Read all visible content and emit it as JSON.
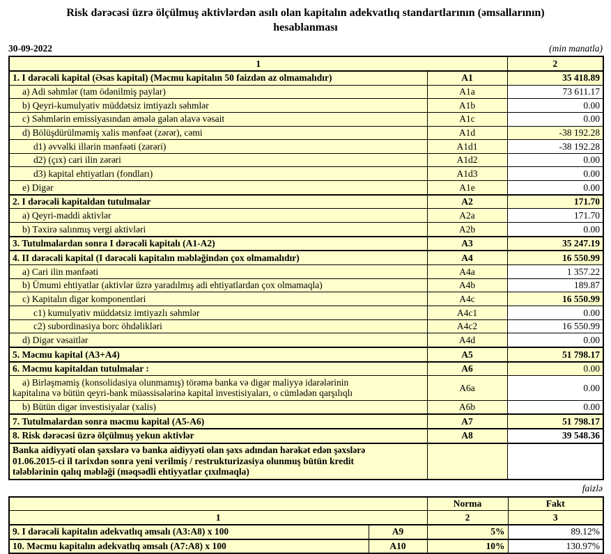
{
  "title": {
    "line1": "Risk dərəcəsi üzrə ölçülmuş aktivlərdən asılı olan kapitalın adekvatlıq standartlarının (əmsallarının)",
    "line2": "hesablanması"
  },
  "meta": {
    "date": "30-09-2022",
    "unit_note": "(min manatla)"
  },
  "colors": {
    "cell_yellow": "#FFFFCC",
    "border": "#000000",
    "background": "#FFFFFF"
  },
  "capital_table": {
    "header": {
      "col1": "1",
      "col2": "2"
    },
    "rows": [
      {
        "label": "1. I dərəcəli kapital (Əsas kapital) (Məcmu kapitalın 50 faizdən  az olmamalıdır)",
        "code": "A1",
        "value": "35 418.89",
        "bold": true,
        "section": true,
        "value_yellow": true,
        "value_bold": true,
        "indent": 0
      },
      {
        "label": "a) Adi səhmlər (tam ödənilmiş paylar)",
        "code": "A1a",
        "value": "73 611.17",
        "indent": 1
      },
      {
        "label": "b) Qeyri-kumulyativ müddətsiz imtiyazlı səhmlər",
        "code": "A1b",
        "value": "0.00",
        "indent": 1
      },
      {
        "label": "c) Səhmlərin emissiyasından əmələ gələn  əlavə vəsait",
        "code": "A1c",
        "value": "0.00",
        "indent": 1
      },
      {
        "label": "d)   Bölüşdürülməmiş xalis mənfəət (zərər), cəmi",
        "code": "A1d",
        "value": "-38 192.28",
        "value_yellow": true,
        "indent": 1
      },
      {
        "label": "d1) əvvəlki illərin mənfəəti (zərəri)",
        "code": "A1d1",
        "value": "-38 192.28",
        "indent": 2
      },
      {
        "label": "d2) (çıx) cari ilin zərəri",
        "code": "A1d2",
        "value": "0.00",
        "indent": 2
      },
      {
        "label": "d3) kapital ehtiyatları (fondları)",
        "code": "A1d3",
        "value": "0.00",
        "indent": 2
      },
      {
        "label": "e) Digər",
        "code": "A1e",
        "value": "0.00",
        "indent": 1
      },
      {
        "label": "2. I dərəcəli kapitaldan  tutulmalar",
        "code": "A2",
        "value": "171.70",
        "bold": true,
        "section": true,
        "value_yellow": true,
        "value_bold": true,
        "indent": 0
      },
      {
        "label": "a) Qeyri-maddi aktivlər",
        "code": "A2a",
        "value": "171.70",
        "indent": 1
      },
      {
        "label": "b) Təxirə salınmış vergi aktivləri",
        "code": "A2b",
        "value": "0.00",
        "indent": 1
      },
      {
        "label": "3. Tutulmalardan  sonra I dərəcəli kapitalı (A1-A2)",
        "code": "A3",
        "value": "35 247.19",
        "bold": true,
        "section": true,
        "value_yellow": true,
        "value_bold": true,
        "indent": 0
      },
      {
        "label": "4. II dərəcəli  kapital (I dərəcəli  kapitalın  məbləğindən çox olmamalıdır)",
        "code": "A4",
        "value": "16 550.99",
        "bold": true,
        "section": true,
        "value_yellow": true,
        "value_bold": true,
        "indent": 0
      },
      {
        "label": "a) Cari ilin mənfəəti",
        "code": "A4a",
        "value": "1 357.22",
        "indent": 1
      },
      {
        "label": "b) Ümumi ehtiyatlar (aktivlər üzrə yaradılmış adi ehtiyatlardan çox olmamaqla)",
        "code": "A4b",
        "value": "189.87",
        "indent": 1
      },
      {
        "label": "c)  Kapitalın digər komponentləri",
        "code": "A4c",
        "value": "16 550.99",
        "value_yellow": true,
        "value_bold": true,
        "indent": 1
      },
      {
        "label": "c1) kumulyativ müddətsiz imtiyazlı səhmlər",
        "code": "A4c1",
        "value": "0.00",
        "indent": 2
      },
      {
        "label": "c2) subordinasiya borc öhdəlikləri",
        "code": "A4c2",
        "value": "16 550.99",
        "indent": 2
      },
      {
        "label": "d) Digər vəsaitlər",
        "code": "A4d",
        "value": "0.00",
        "indent": 1
      },
      {
        "label": "5. Məcmu kapital (A3+A4)",
        "code": "A5",
        "value": "51 798.17",
        "bold": true,
        "section": true,
        "value_yellow": true,
        "value_bold": true,
        "indent": 0
      },
      {
        "label": "6. Məcmu kapitaldan tutulmalar :",
        "code": "A6",
        "value": "0.00",
        "bold": true,
        "section": true,
        "value_yellow": true,
        "indent": 0
      },
      {
        "label": "a)   Birləşməmiş (konsolidasiya olunmamış) törəmə banka və digər maliyyə idarələrinin\nkapitalına və bütün qeyri-bank müəssisələrinə kapital investisiyaları, o cümlədən qarşılıqlı",
        "code": "A6a",
        "value": "0.00",
        "hang": true,
        "indent": 0
      },
      {
        "label": "b) Bütün digər investisiyalar (xalis)",
        "code": "A6b",
        "value": "0.00",
        "indent": 1
      },
      {
        "label": "7. Tutulmalardan  sonra məcmu kapital (A5-A6)",
        "code": "A7",
        "value": "51 798.17",
        "bold": true,
        "section": true,
        "value_yellow": true,
        "value_bold": true,
        "indent": 0
      },
      {
        "label": "8. Risk dərəcəsi üzrə ölçülmuş yekun aktivlər",
        "code": "A8",
        "value": "39 548.36",
        "bold": true,
        "section": true,
        "value_bold": true,
        "indent": 0
      },
      {
        "label": "Banka aidiyyəti olan şəxslərə və banka aidiyyəti olan şəxs adından hərəkət edən şəxslərə\n01.06.2015-ci il tarixdən sonra yeni verilmiş / restrukturizasiya olunmuş bütün kredit\ntələblərinin qalıq məbləği (məqsədli ehtiyyatlar çıxılmaqla)",
        "code": "",
        "value": "",
        "bold": true,
        "section": true,
        "note": true,
        "indent": 0
      }
    ]
  },
  "percent_note": "faizlə",
  "ratio_table": {
    "header": {
      "norma": "Norma",
      "fakt": "Fakt",
      "col1": "1",
      "col2": "2",
      "col3": "3"
    },
    "rows": [
      {
        "label": "9. I dərəcəli  kapitalın  adekvatlıq əmsalı (A3:A8) x 100",
        "code": "A9",
        "norma": "5%",
        "fakt": "89.12%"
      },
      {
        "label": "10. Məcmu kapitalın  adekvatlıq  əmsalı (A7:A8) x 100",
        "code": "A10",
        "norma": "10%",
        "fakt": "130.97%"
      }
    ]
  }
}
